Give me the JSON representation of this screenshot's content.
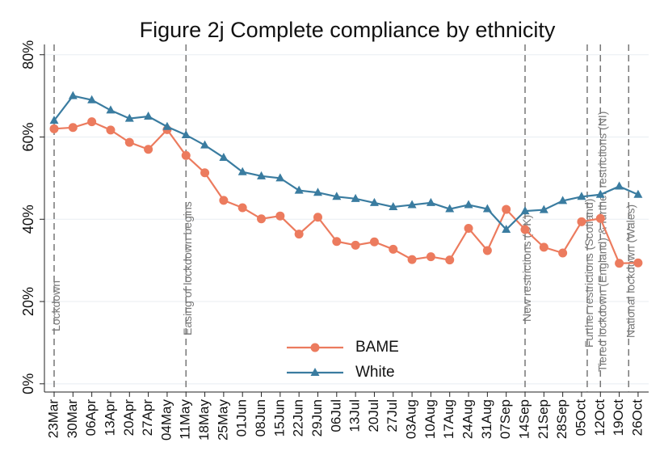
{
  "chart_data": {
    "type": "line",
    "title": "Figure 2j Complete compliance by ethnicity",
    "categories": [
      "23Mar",
      "30Mar",
      "06Apr",
      "13Apr",
      "20Apr",
      "27Apr",
      "04May",
      "11May",
      "18May",
      "25May",
      "01Jun",
      "08Jun",
      "15Jun",
      "22Jun",
      "29Jun",
      "06Jul",
      "13Jul",
      "20Jul",
      "27Jul",
      "03Aug",
      "10Aug",
      "17Aug",
      "24Aug",
      "31Aug",
      "07Sep",
      "14Sep",
      "21Sep",
      "28Sep",
      "05Oct",
      "12Oct",
      "19Oct",
      "26Oct"
    ],
    "series": [
      {
        "name": "BAME",
        "color": "#ec7b5e",
        "marker": "circle",
        "values": [
          62,
          62.3,
          63.7,
          61.7,
          58.7,
          57,
          61.8,
          55.5,
          51.3,
          44.6,
          42.8,
          40.1,
          40.8,
          36.4,
          40.5,
          34.6,
          33.7,
          34.5,
          32.7,
          30.2,
          30.9,
          30.1,
          37.8,
          32.4,
          42.4,
          37.5,
          33.2,
          31.8,
          39.4,
          40.2,
          29.3,
          29.4
        ]
      },
      {
        "name": "White",
        "color": "#3a7ca0",
        "marker": "triangle",
        "values": [
          64,
          70,
          69,
          66.5,
          64.5,
          65,
          62.5,
          60.5,
          58,
          55,
          51.5,
          50.5,
          50,
          47,
          46.5,
          45.5,
          45,
          44,
          43,
          43.5,
          44,
          42.5,
          43.5,
          42.5,
          37.5,
          42,
          42.3,
          44.5,
          45.5,
          46,
          48,
          46
        ]
      }
    ],
    "ylim": [
      -2,
      82.5
    ],
    "yticks": [
      {
        "value": 0,
        "label": "0%"
      },
      {
        "value": 20,
        "label": "20%"
      },
      {
        "value": 40,
        "label": "40%"
      },
      {
        "value": 60,
        "label": "60%"
      },
      {
        "value": 80,
        "label": "80%"
      }
    ],
    "grid": true,
    "annotations": [
      {
        "x": 0,
        "text": "Lockdown"
      },
      {
        "x": 7,
        "text": "Easing of lockdown begins"
      },
      {
        "x": 25,
        "text": "New restrictions (UK)"
      },
      {
        "x": 28.3,
        "text": "Further restrictions (Scotland)"
      },
      {
        "x": 29,
        "text": "Tiered lockdown (England) & further restrictions (NI)"
      },
      {
        "x": 30.5,
        "text": "National lockdown (Wales)"
      }
    ]
  }
}
